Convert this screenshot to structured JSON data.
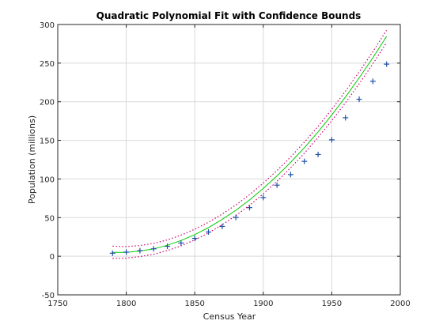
{
  "chart_data": {
    "type": "line",
    "title": "Quadratic Polynomial Fit with Confidence Bounds",
    "xlabel": "Census Year",
    "ylabel": "Population (millions)",
    "xlim": [
      1750,
      2000
    ],
    "ylim": [
      -50,
      300
    ],
    "xticks": [
      1750,
      1800,
      1850,
      1900,
      1950,
      2000
    ],
    "yticks": [
      -50,
      0,
      50,
      100,
      150,
      200,
      250,
      300
    ],
    "xtick_labels": [
      "1750",
      "1800",
      "1850",
      "1900",
      "1950",
      "2000"
    ],
    "ytick_labels": [
      "-50",
      "0",
      "50",
      "100",
      "150",
      "200",
      "250",
      "300"
    ],
    "grid": true,
    "series": [
      {
        "kind": "scatter",
        "marker": "+",
        "color": "#1f4fa8",
        "x": [
          1790,
          1800,
          1810,
          1820,
          1830,
          1840,
          1850,
          1860,
          1870,
          1880,
          1890,
          1900,
          1910,
          1920,
          1930,
          1940,
          1950,
          1960,
          1970,
          1980,
          1990
        ],
        "y": [
          3.9,
          5.3,
          7.2,
          9.6,
          12.9,
          17.1,
          23.1,
          31.4,
          38.6,
          50.2,
          62.9,
          76.0,
          92.0,
          105.7,
          122.8,
          131.7,
          150.7,
          179.3,
          203.2,
          226.5,
          248.7
        ]
      },
      {
        "kind": "line",
        "style": "solid",
        "color": "#00cc00",
        "x": [
          1790,
          1800,
          1810,
          1820,
          1830,
          1840,
          1850,
          1860,
          1870,
          1880,
          1890,
          1900,
          1910,
          1920,
          1930,
          1940,
          1950,
          1960,
          1970,
          1980,
          1990
        ],
        "y": [
          5.1,
          5.0,
          6.7,
          9.6,
          14.2,
          20.4,
          28.0,
          37.0,
          47.6,
          59.5,
          72.9,
          87.7,
          103.9,
          121.5,
          140.6,
          161.0,
          182.9,
          206.2,
          230.9,
          257.0,
          284.6
        ]
      },
      {
        "kind": "line",
        "style": "dotted",
        "color": "#d0006f",
        "x": [
          1790,
          1800,
          1810,
          1820,
          1830,
          1840,
          1850,
          1860,
          1870,
          1880,
          1890,
          1900,
          1910,
          1920,
          1930,
          1940,
          1950,
          1960,
          1970,
          1980,
          1990
        ],
        "y": [
          13.0,
          12.4,
          13.9,
          16.6,
          21.1,
          27.3,
          34.9,
          43.9,
          54.5,
          66.4,
          79.8,
          94.6,
          110.9,
          128.5,
          147.7,
          168.1,
          190.2,
          213.7,
          238.6,
          264.9,
          292.5
        ]
      },
      {
        "kind": "line",
        "style": "dotted",
        "color": "#d0006f",
        "x": [
          1790,
          1800,
          1810,
          1820,
          1830,
          1840,
          1850,
          1860,
          1870,
          1880,
          1890,
          1900,
          1910,
          1920,
          1930,
          1940,
          1950,
          1960,
          1970,
          1980,
          1990
        ],
        "y": [
          -2.8,
          -2.4,
          -0.5,
          2.6,
          7.3,
          13.5,
          21.1,
          30.1,
          40.7,
          52.6,
          66.0,
          80.8,
          96.9,
          114.5,
          133.5,
          153.9,
          175.6,
          198.7,
          223.2,
          249.1,
          276.7
        ]
      }
    ]
  }
}
